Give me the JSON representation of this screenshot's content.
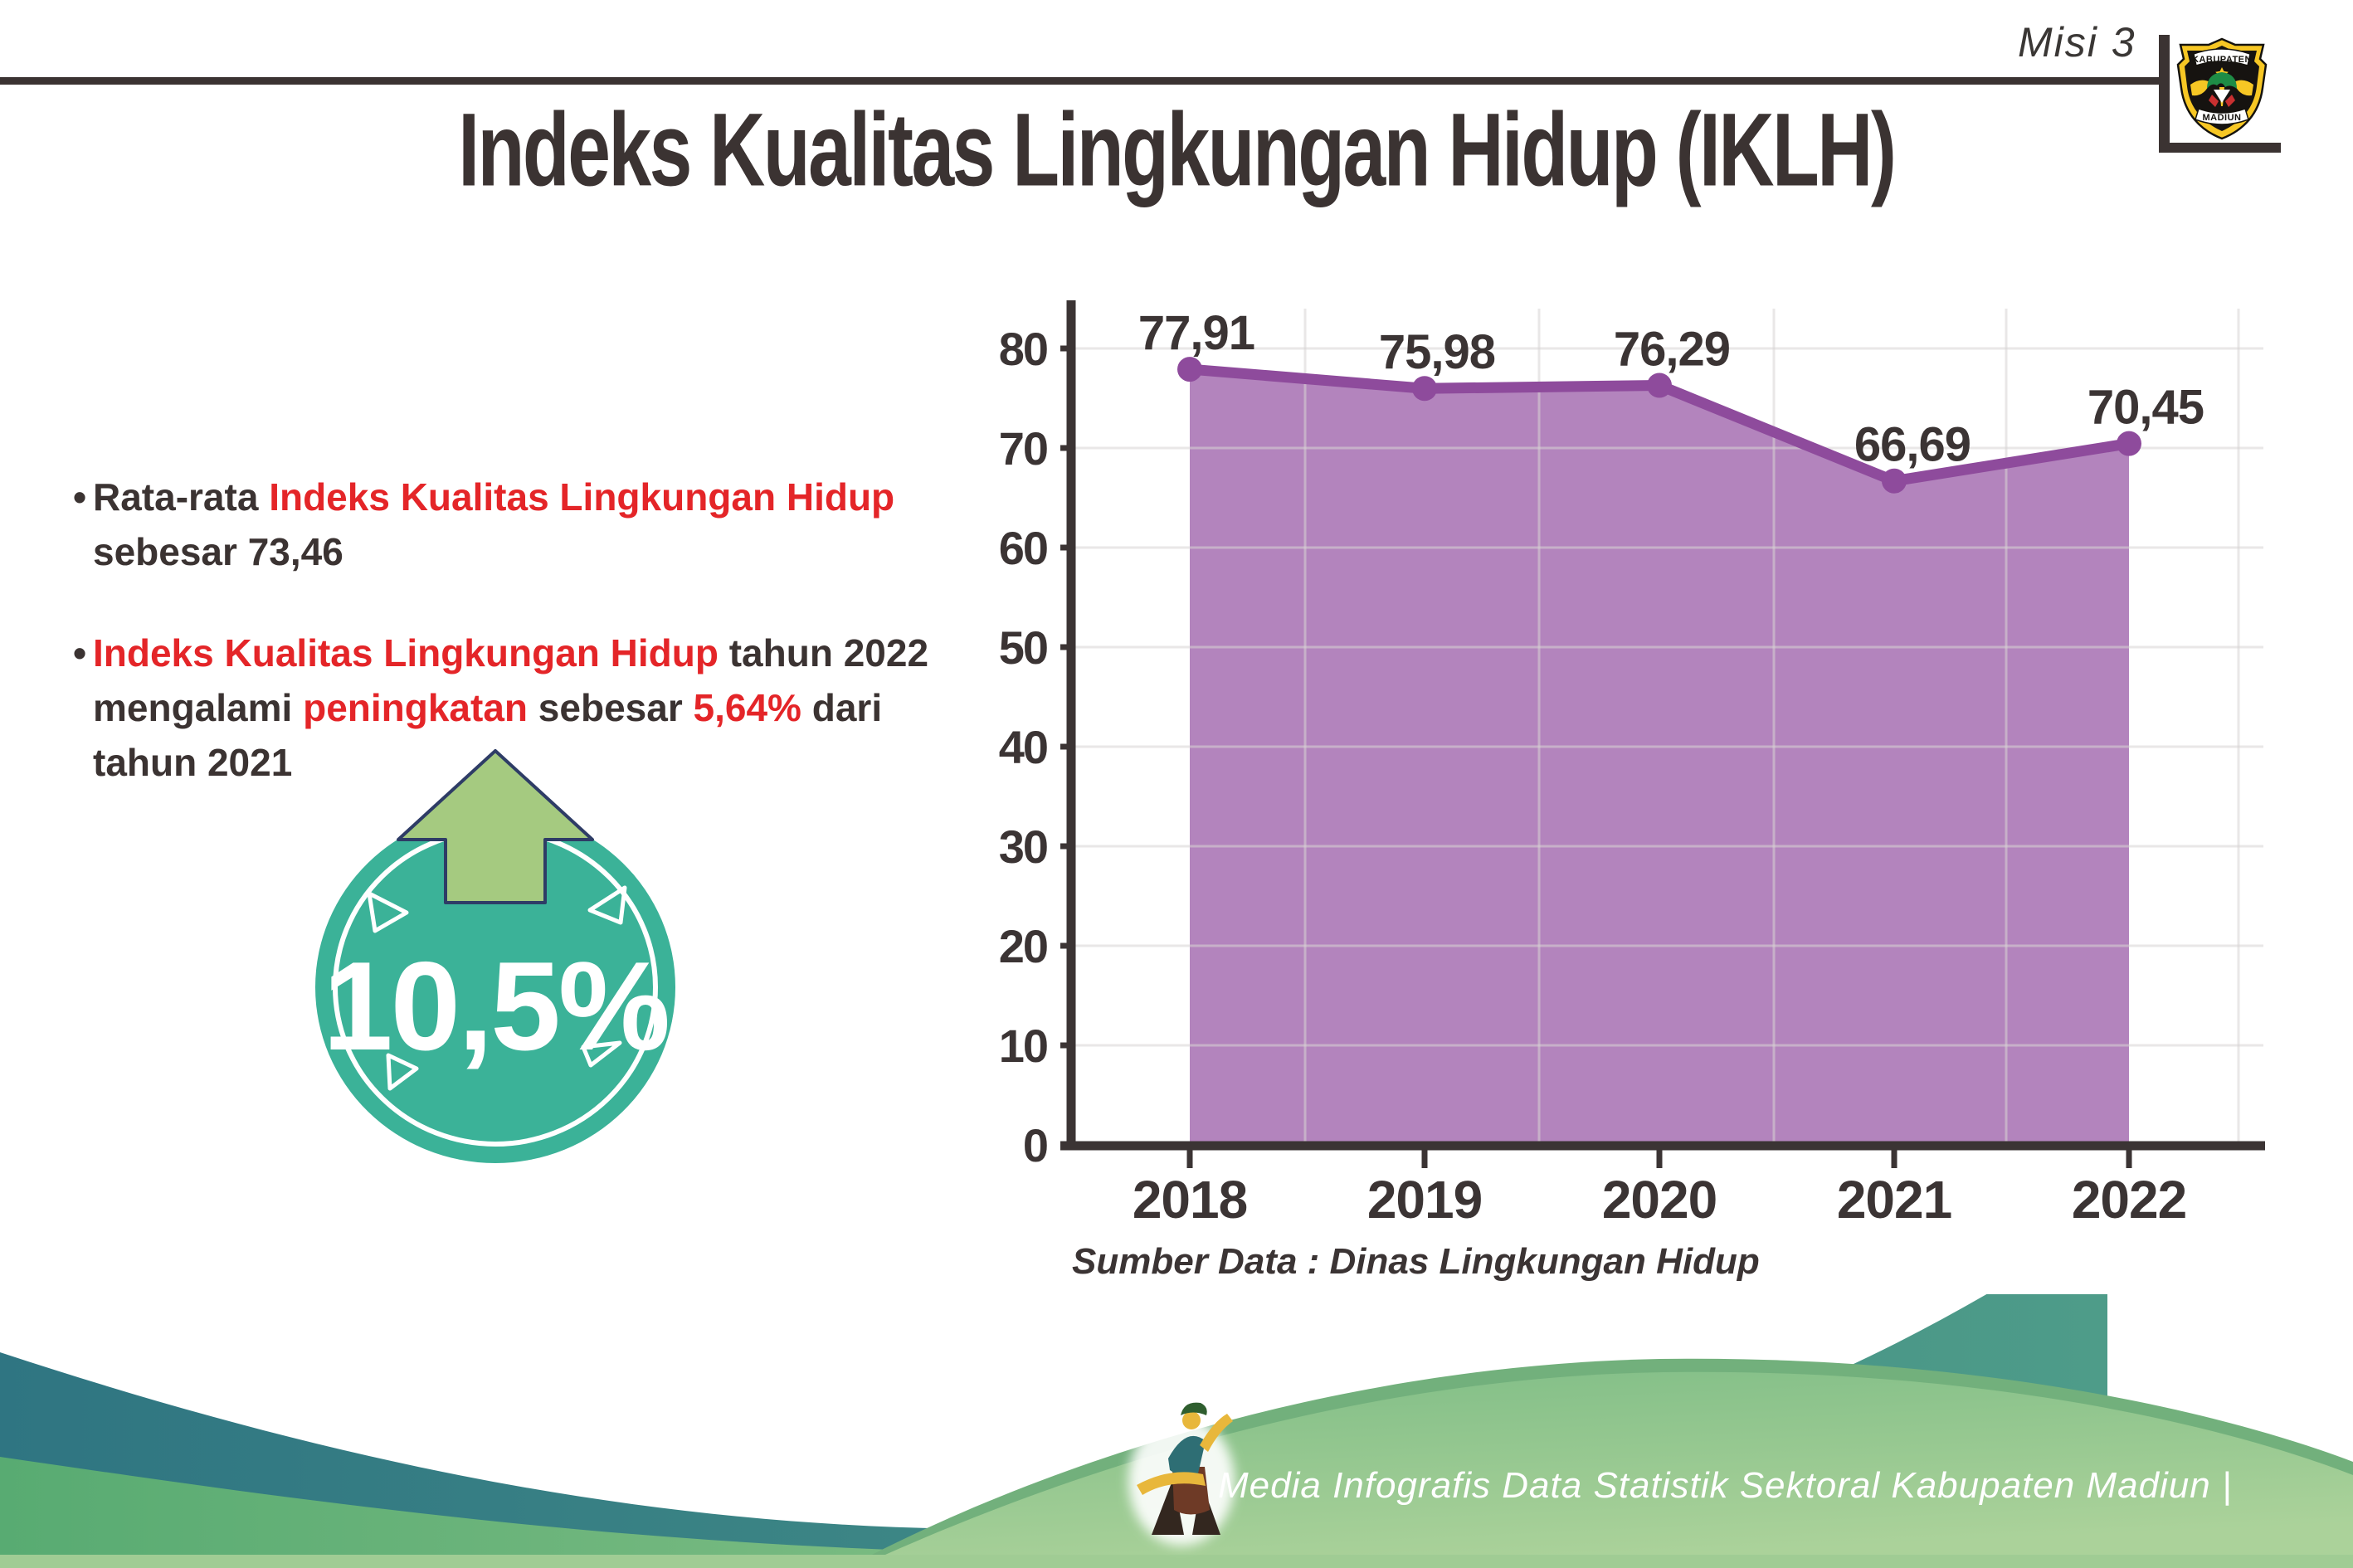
{
  "header": {
    "misi_label": "Misi 3",
    "logo_top": "KABUPATEN",
    "logo_bottom": "MADIUN"
  },
  "page_title": "Indeks Kualitas Lingkungan Hidup (IKLH)",
  "bullet_char": "•",
  "bullets": {
    "b1l1a": "Rata-rata ",
    "b1l1b": "Indeks Kualitas Lingkungan Hidup",
    "b1l2": "sebesar 73,46",
    "b2l1a": "Indeks Kualitas Lingkungan Hidup",
    "b2l1b": " tahun 2022",
    "b2l2a": "mengalami ",
    "b2l2b": "peningkatan",
    "b2l2c": " sebesar ",
    "b2l2d": "5,64%",
    "b2l2e": " dari",
    "b2l3": "tahun 2021"
  },
  "badge": {
    "value": "10,5%"
  },
  "chart_data": {
    "type": "area",
    "title": "",
    "categories": [
      "2018",
      "2019",
      "2020",
      "2021",
      "2022"
    ],
    "values": [
      77.91,
      75.98,
      76.29,
      66.69,
      70.45
    ],
    "value_labels": [
      "77,91",
      "75,98",
      "76,29",
      "66,69",
      "70,45"
    ],
    "xlabel": "",
    "ylabel": "",
    "ylim": [
      0,
      80
    ],
    "yticks": [
      0,
      10,
      20,
      30,
      40,
      50,
      60,
      70,
      80
    ],
    "grid": true,
    "legend": "none",
    "area_color": "#B384BD",
    "line_color": "#8E4B9C",
    "label_color": "#3B3434"
  },
  "source_label": "Sumber Data : Dinas Lingkungan Hidup",
  "footer": {
    "credit": "Media Infografis Data Statistik Sektoral Kabupaten Madiun |"
  },
  "colors": {
    "dark": "#3B3332",
    "red": "#E42528",
    "badge_circle": "#3BB298",
    "arrow_fill": "#A5CA80",
    "arrow_outline": "#2E3C66",
    "footer_teal_start": "#2F7582",
    "footer_teal_end": "#4E9C89",
    "footer_green_dark": "#58AB72",
    "footer_green_light": "#A9D199"
  }
}
